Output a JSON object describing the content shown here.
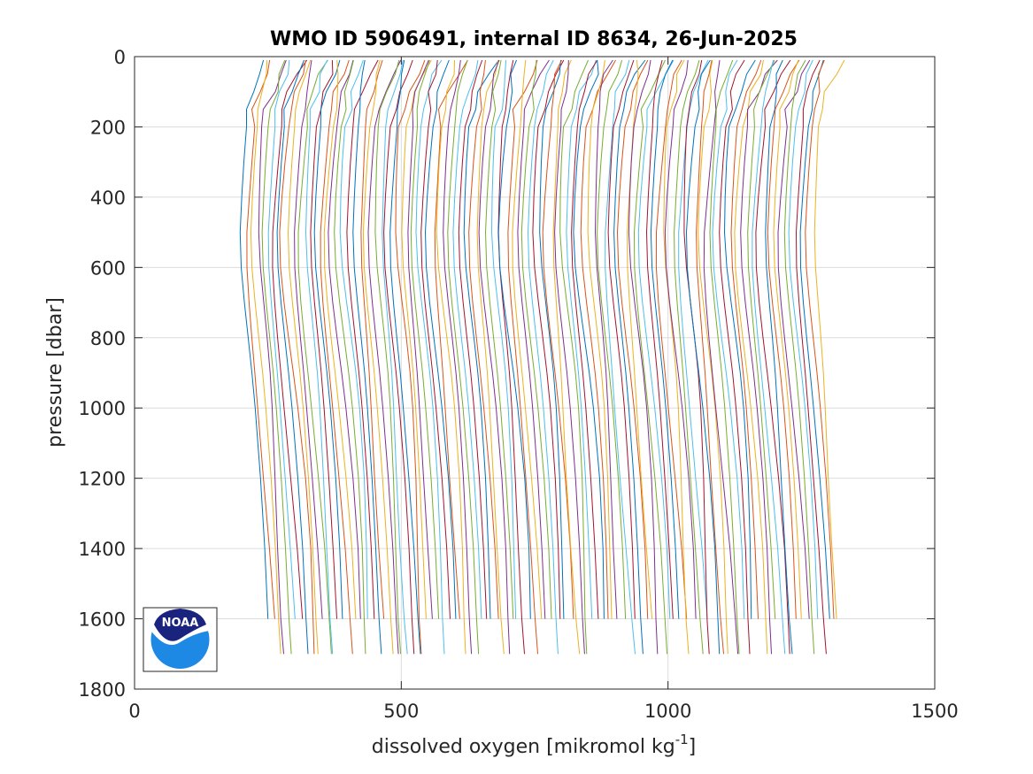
{
  "chart_data": {
    "type": "line",
    "title": "WMO ID 5906491, internal ID 8634, 26-Jun-2025",
    "xlabel_main": "dissolved oxygen [mikromol kg",
    "xlabel_sup": "-1",
    "xlabel_end": "]",
    "ylabel": "pressure [dbar]",
    "xlim": [
      0,
      1500
    ],
    "ylim": [
      0,
      1800
    ],
    "y_reversed": true,
    "x_ticks": [
      0,
      500,
      1000,
      1500
    ],
    "y_ticks": [
      0,
      200,
      400,
      600,
      800,
      1000,
      1200,
      1400,
      1600,
      1800
    ],
    "x_tick_labels": [
      "0",
      "500",
      "1000",
      "1500"
    ],
    "y_tick_labels": [
      "0",
      "200",
      "400",
      "600",
      "800",
      "1000",
      "1200",
      "1400",
      "1600",
      "1800"
    ],
    "grid": true,
    "series_colors": [
      "#0072BD",
      "#D95319",
      "#EDB120",
      "#7E2F8E",
      "#77AC30",
      "#4DBEEE",
      "#A2142F"
    ],
    "profile_spacing": 10,
    "profile_count": 108,
    "first_profile_offset": 0,
    "profile_shape": {
      "pressure": [
        10,
        50,
        100,
        150,
        200,
        300,
        400,
        500,
        600,
        700,
        800,
        900,
        1000,
        1200,
        1400,
        1600,
        1700
      ],
      "oxygen": [
        235,
        228,
        220,
        215,
        210,
        205,
        201,
        198,
        200,
        206,
        213,
        220,
        226,
        236,
        244,
        250,
        254
      ]
    }
  },
  "logo": {
    "name": "NOAA",
    "text": "NOAA",
    "colors": {
      "navy": "#1a237e",
      "sky": "#1e88e5",
      "light": "#42a5f5"
    }
  }
}
